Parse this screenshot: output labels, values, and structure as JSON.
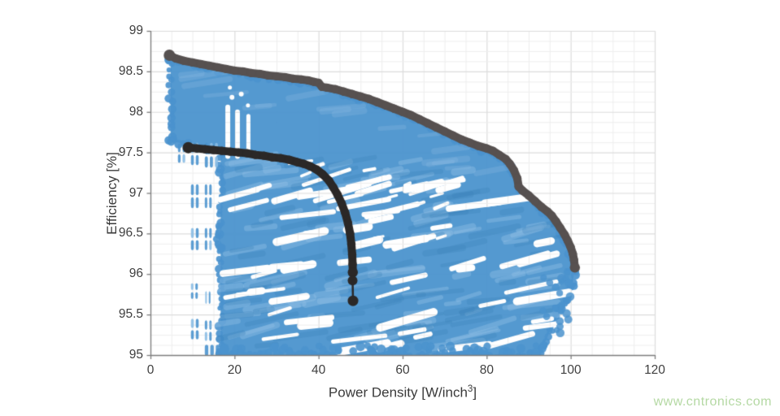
{
  "watermark": {
    "text": "www.cntronics.com",
    "color": "#b5d9a4"
  },
  "chart_data": {
    "type": "scatter",
    "title": "",
    "xlabel": {
      "main": "Power Density [W/inch",
      "sup": "3",
      "end": "]"
    },
    "ylabel": "Efficiency [%]",
    "xlim": [
      0,
      120
    ],
    "ylim": [
      95,
      99
    ],
    "xticks": [
      0,
      20,
      40,
      60,
      80,
      100,
      120
    ],
    "yticks": [
      95,
      95.5,
      96,
      96.5,
      97,
      97.5,
      98,
      98.5,
      99
    ],
    "grid": {
      "major": true,
      "minor": true,
      "x_minor_step": 5,
      "y_minor_step": 0.125,
      "major_color": "#dcdcdc",
      "minor_color": "#eeeeee"
    },
    "axis_color": "#7d7d7d",
    "tick_label_color": "#3f3f3f",
    "series": [
      {
        "name": "design-space-cloud",
        "kind": "cloud",
        "color": "#4b93ce",
        "color_light": "#8abce4",
        "color_dark": "#2e7cb8",
        "x_range": [
          4.8,
          101
        ],
        "y_range": [
          95.0,
          98.7
        ],
        "outline": [
          [
            4.8,
            98.66
          ],
          [
            8,
            98.61
          ],
          [
            12,
            98.56
          ],
          [
            16,
            98.52
          ],
          [
            20,
            98.48
          ],
          [
            24,
            98.45
          ],
          [
            28,
            98.42
          ],
          [
            32,
            98.4
          ],
          [
            36,
            98.37
          ],
          [
            40,
            98.33
          ],
          [
            42,
            98.28
          ],
          [
            46,
            98.22
          ],
          [
            50,
            98.16
          ],
          [
            54,
            98.09
          ],
          [
            58,
            98.01
          ],
          [
            62,
            97.93
          ],
          [
            66,
            97.83
          ],
          [
            70,
            97.73
          ],
          [
            74,
            97.63
          ],
          [
            78,
            97.55
          ],
          [
            81,
            97.49
          ],
          [
            83.5,
            97.43
          ],
          [
            85.5,
            97.33
          ],
          [
            87,
            97.18
          ],
          [
            87.6,
            97.02
          ],
          [
            89.5,
            96.94
          ],
          [
            91.5,
            96.86
          ],
          [
            93.5,
            96.77
          ],
          [
            95.5,
            96.66
          ],
          [
            97.5,
            96.52
          ],
          [
            99,
            96.38
          ],
          [
            100.3,
            96.2
          ],
          [
            100.8,
            96.02
          ],
          [
            100.4,
            95.85
          ],
          [
            99.0,
            95.68
          ],
          [
            97.3,
            95.52
          ],
          [
            95.3,
            95.32
          ],
          [
            93.6,
            95.12
          ],
          [
            92.8,
            95.0
          ],
          [
            16.7,
            95.0
          ],
          [
            16.7,
            96.33
          ],
          [
            16.2,
            96.45
          ],
          [
            16.7,
            96.58
          ],
          [
            16.7,
            97.5
          ],
          [
            13,
            97.55
          ],
          [
            9,
            97.59
          ],
          [
            4.8,
            97.65
          ]
        ],
        "left_clusters": [
          [
            6.3,
            8.5,
            97.36,
            97.62,
            2,
            2
          ],
          [
            9.4,
            11.7,
            97.33,
            97.63,
            2,
            2
          ],
          [
            12.7,
            16.3,
            97.3,
            97.63,
            2,
            3
          ],
          [
            9.4,
            11.7,
            96.8,
            97.12,
            2,
            2
          ],
          [
            12.7,
            14.8,
            96.8,
            97.12,
            2,
            2
          ],
          [
            9.4,
            11.7,
            96.28,
            96.58,
            2,
            2
          ],
          [
            12.7,
            14.8,
            96.28,
            96.58,
            2,
            2
          ],
          [
            15.2,
            16.6,
            96.3,
            96.56,
            2,
            1
          ],
          [
            9.4,
            11.5,
            95.68,
            95.9,
            2,
            2
          ],
          [
            12.8,
            14.5,
            95.62,
            95.8,
            1,
            2
          ],
          [
            9.4,
            11.7,
            95.18,
            95.46,
            2,
            2
          ],
          [
            12.7,
            14.8,
            95.16,
            95.44,
            2,
            2
          ],
          [
            12.7,
            16.6,
            94.98,
            95.14,
            1,
            3
          ]
        ]
      },
      {
        "name": "overall-pareto-front",
        "kind": "front",
        "color": "#575150",
        "line_width": 10,
        "points": [
          [
            4.5,
            98.7
          ],
          [
            6,
            98.66
          ],
          [
            8,
            98.63
          ],
          [
            10,
            98.61
          ],
          [
            12,
            98.59
          ],
          [
            14,
            98.57
          ],
          [
            16,
            98.55
          ],
          [
            18,
            98.53
          ],
          [
            20,
            98.51
          ],
          [
            22,
            98.5
          ],
          [
            24,
            98.48
          ],
          [
            26,
            98.47
          ],
          [
            28,
            98.45
          ],
          [
            30,
            98.44
          ],
          [
            32,
            98.43
          ],
          [
            34,
            98.41
          ],
          [
            36,
            98.4
          ],
          [
            37.5,
            98.39
          ],
          [
            39,
            98.37
          ],
          [
            40,
            98.36
          ],
          [
            40.8,
            98.31
          ],
          [
            42,
            98.3
          ],
          [
            44,
            98.28
          ],
          [
            46,
            98.25
          ],
          [
            48,
            98.22
          ],
          [
            50,
            98.19
          ],
          [
            52,
            98.16
          ],
          [
            54,
            98.12
          ],
          [
            56,
            98.08
          ],
          [
            58,
            98.04
          ],
          [
            60,
            98.0
          ],
          [
            62,
            97.96
          ],
          [
            64,
            97.91
          ],
          [
            66,
            97.86
          ],
          [
            68,
            97.81
          ],
          [
            70,
            97.76
          ],
          [
            72,
            97.71
          ],
          [
            74,
            97.66
          ],
          [
            76,
            97.62
          ],
          [
            78,
            97.58
          ],
          [
            80,
            97.55
          ],
          [
            81.5,
            97.52
          ],
          [
            83,
            97.47
          ],
          [
            84.5,
            97.42
          ],
          [
            85.5,
            97.36
          ],
          [
            86.5,
            97.28
          ],
          [
            87.3,
            97.18
          ],
          [
            87.6,
            97.08
          ],
          [
            88.5,
            97.03
          ],
          [
            90,
            96.97
          ],
          [
            91.5,
            96.9
          ],
          [
            93,
            96.83
          ],
          [
            94.5,
            96.77
          ],
          [
            95.5,
            96.72
          ],
          [
            96.5,
            96.65
          ],
          [
            97.5,
            96.57
          ],
          [
            98.5,
            96.49
          ],
          [
            99.3,
            96.41
          ],
          [
            100,
            96.33
          ],
          [
            100.5,
            96.25
          ],
          [
            100.8,
            96.17
          ],
          [
            101,
            96.08
          ]
        ]
      },
      {
        "name": "constrained-pareto-front",
        "kind": "front",
        "color": "#2b2827",
        "line_width": 10,
        "points": [
          [
            9,
            97.56
          ],
          [
            11,
            97.55
          ],
          [
            13,
            97.54
          ],
          [
            15,
            97.53
          ],
          [
            17,
            97.52
          ],
          [
            19,
            97.51
          ],
          [
            21,
            97.5
          ],
          [
            23,
            97.49
          ],
          [
            25,
            97.47
          ],
          [
            27,
            97.46
          ],
          [
            29,
            97.44
          ],
          [
            31,
            97.43
          ],
          [
            33,
            97.41
          ],
          [
            35,
            97.38
          ],
          [
            36.5,
            97.36
          ],
          [
            38,
            97.33
          ],
          [
            39.5,
            97.29
          ],
          [
            41,
            97.23
          ],
          [
            42.5,
            97.15
          ],
          [
            43.5,
            97.07
          ],
          [
            44.5,
            96.98
          ],
          [
            45.5,
            96.87
          ],
          [
            46.3,
            96.76
          ],
          [
            47,
            96.63
          ],
          [
            47.5,
            96.5
          ],
          [
            47.8,
            96.37
          ],
          [
            48,
            96.24
          ],
          [
            48.1,
            96.12
          ],
          [
            48.15,
            96.02
          ]
        ],
        "extra_dots": [
          [
            48.1,
            95.92
          ],
          [
            48.2,
            95.67
          ]
        ]
      }
    ]
  }
}
